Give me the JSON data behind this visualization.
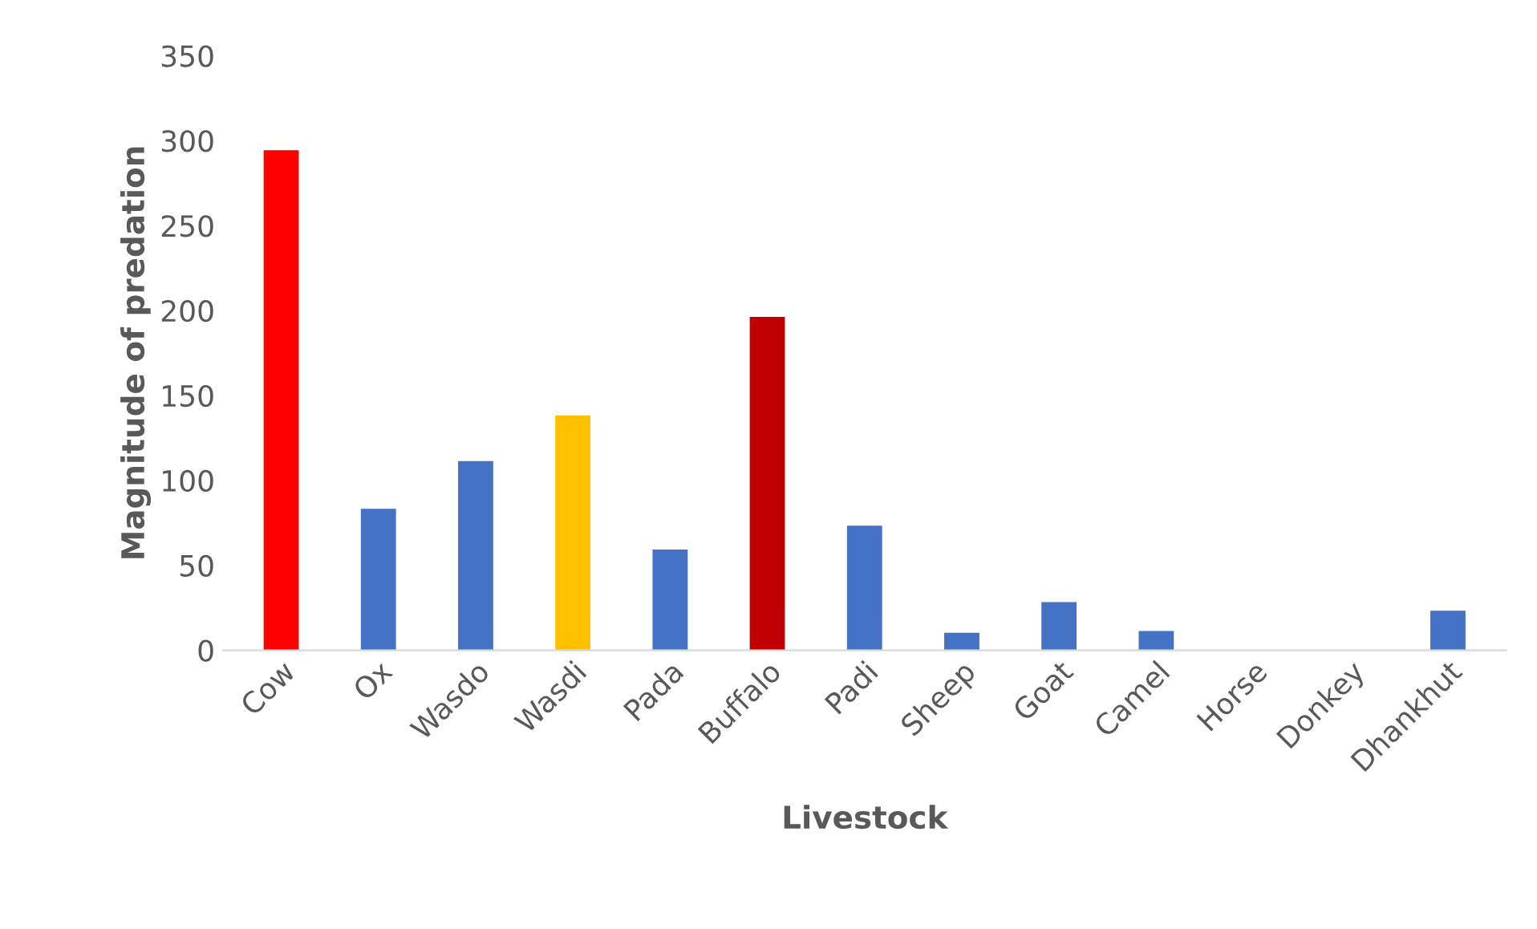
{
  "chart_data": {
    "type": "bar",
    "xlabel": "Livestock",
    "ylabel": "Magnitude of predation",
    "categories": [
      "Cow",
      "Ox",
      "Wasdo",
      "Wasdi",
      "Pada",
      "Buffalo",
      "Padi",
      "Sheep",
      "Goat",
      "Camel",
      "Horse",
      "Donkey",
      "Dhankhut"
    ],
    "values": [
      294,
      83,
      111,
      138,
      59,
      196,
      73,
      10,
      28,
      11,
      0,
      0,
      23
    ],
    "colors": [
      "#ff0000",
      "#4472c4",
      "#4472c4",
      "#ffc000",
      "#4472c4",
      "#c00000",
      "#4472c4",
      "#4472c4",
      "#4472c4",
      "#4472c4",
      "#4472c4",
      "#4472c4",
      "#4472c4"
    ],
    "ylim": [
      0,
      350
    ],
    "yticks": [
      0,
      50,
      100,
      150,
      200,
      250,
      300,
      350
    ],
    "grid": false
  }
}
